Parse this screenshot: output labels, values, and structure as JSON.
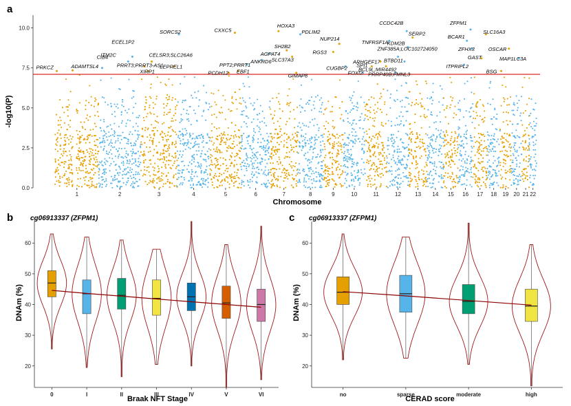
{
  "panels": {
    "a": "a",
    "b": "b",
    "c": "c"
  },
  "chart_data": [
    {
      "id": "a",
      "type": "scatter",
      "subtype": "manhattan",
      "xlabel": "Chromosome",
      "ylabel": "-log10(P)",
      "ylim": [
        0,
        10.8
      ],
      "yticks": [
        "0.0",
        "2.5",
        "5.0",
        "7.5",
        "10.0"
      ],
      "threshold": 7.1,
      "colors": {
        "odd": "#E69F00",
        "even": "#56B4E9",
        "threshold": "#d62728"
      },
      "chromosomes": [
        "1",
        "2",
        "3",
        "4",
        "5",
        "6",
        "7",
        "8",
        "9",
        "10",
        "11",
        "12",
        "13",
        "14",
        "15",
        "16",
        "17",
        "18",
        "19",
        "20",
        "21",
        "22"
      ],
      "hits": [
        {
          "gene": "PRKCZ",
          "chr": 1,
          "pos": 0.04,
          "p": 7.3
        },
        {
          "gene": "ADAMTSL4",
          "chr": 1,
          "pos": 0.4,
          "p": 7.35
        },
        {
          "gene": "CIB4",
          "chr": 2,
          "pos": 0.08,
          "p": 7.5
        },
        {
          "gene": "ITM2C",
          "chr": 2,
          "pos": 0.7,
          "p": 7.9
        },
        {
          "gene": "ECEL1P2",
          "chr": 2,
          "pos": 0.8,
          "p": 8.2
        },
        {
          "gene": "PRRT3;PRRT3-AS1",
          "chr": 3,
          "pos": 0.1,
          "p": 7.6
        },
        {
          "gene": "SORCS2",
          "chr": 4,
          "pos": 0.05,
          "p": 9.6
        },
        {
          "gene": "CELSR3;SLC26A6",
          "chr": 3,
          "pos": 0.3,
          "p": 7.9
        },
        {
          "gene": "XIRP1",
          "chr": 3,
          "pos": 0.2,
          "p": 7.3
        },
        {
          "gene": "LEPREL1",
          "chr": 3,
          "pos": 0.9,
          "p": 7.6
        },
        {
          "gene": "CXXC5",
          "chr": 5,
          "pos": 0.8,
          "p": 9.7
        },
        {
          "gene": "PCDH12",
          "chr": 5,
          "pos": 0.6,
          "p": 7.2
        },
        {
          "gene": "EBF1",
          "chr": 5,
          "pos": 0.9,
          "p": 7.3
        },
        {
          "gene": "PPT2;PRRT1",
          "chr": 6,
          "pos": 0.2,
          "p": 7.7
        },
        {
          "gene": "ANKRD6",
          "chr": 6,
          "pos": 0.7,
          "p": 8.0
        },
        {
          "gene": "HOXA3",
          "chr": 7,
          "pos": 0.3,
          "p": 9.8
        },
        {
          "gene": "SH2B2",
          "chr": 7,
          "pos": 0.6,
          "p": 8.6
        },
        {
          "gene": "AGPAT4",
          "chr": 6,
          "pos": 0.95,
          "p": 8.4
        },
        {
          "gene": "SLC37A3",
          "chr": 7,
          "pos": 0.8,
          "p": 8.2
        },
        {
          "gene": "GIMAP8",
          "chr": 7,
          "pos": 0.95,
          "p": 7.2
        },
        {
          "gene": "PDLIM2",
          "chr": 8,
          "pos": 0.1,
          "p": 9.6
        },
        {
          "gene": "NUP214",
          "chr": 9,
          "pos": 0.8,
          "p": 9.0
        },
        {
          "gene": "RGS3",
          "chr": 9,
          "pos": 0.5,
          "p": 8.5
        },
        {
          "gene": "CUGBP2",
          "chr": 10,
          "pos": 0.1,
          "p": 7.6
        },
        {
          "gene": "FOXI2",
          "chr": 10,
          "pos": 0.9,
          "p": 7.2
        },
        {
          "gene": "TNFRSF1A",
          "chr": 12,
          "pos": 0.1,
          "p": 9.2
        },
        {
          "gene": "SPI1",
          "chr": 11,
          "pos": 0.3,
          "p": 7.6
        },
        {
          "gene": "ARHGEF17",
          "chr": 11,
          "pos": 0.7,
          "p": 7.9
        },
        {
          "gene": "BCL9L;MIR4492",
          "chr": 11,
          "pos": 0.95,
          "p": 7.6
        },
        {
          "gene": "PRRP40B;FMNL3",
          "chr": 12,
          "pos": 0.4,
          "p": 7.2
        },
        {
          "gene": "CCDC42B",
          "chr": 12,
          "pos": 0.9,
          "p": 9.8
        },
        {
          "gene": "KDM2B",
          "chr": 12,
          "pos": 0.95,
          "p": 8.8
        },
        {
          "gene": "SERP2",
          "chr": 13,
          "pos": 0.2,
          "p": 9.4
        },
        {
          "gene": "ZNF385A;LOC102724050",
          "chr": 12,
          "pos": 0.5,
          "p": 8.2
        },
        {
          "gene": "BTBD11",
          "chr": 12,
          "pos": 0.8,
          "p": 7.9
        },
        {
          "gene": "ZFPM1",
          "chr": 16,
          "pos": 0.85,
          "p": 9.9
        },
        {
          "gene": "SLC16A3",
          "chr": 17,
          "pos": 0.9,
          "p": 9.6
        },
        {
          "gene": "BCAR1",
          "chr": 16,
          "pos": 0.6,
          "p": 9.2
        },
        {
          "gene": "ZFHX3",
          "chr": 16,
          "pos": 0.95,
          "p": 8.7
        },
        {
          "gene": "OSCAR",
          "chr": 19,
          "pos": 0.8,
          "p": 8.7
        },
        {
          "gene": "ITPRIPL2",
          "chr": 16,
          "pos": 0.4,
          "p": 7.7
        },
        {
          "gene": "GAST",
          "chr": 17,
          "pos": 0.6,
          "p": 8.1
        },
        {
          "gene": "BSG",
          "chr": 19,
          "pos": 0.1,
          "p": 7.3
        },
        {
          "gene": "MAP1LC3A",
          "chr": 20,
          "pos": 0.7,
          "p": 8.1
        }
      ]
    },
    {
      "id": "b",
      "type": "violin-box",
      "title": "cg06913337 (ZFPM1)",
      "xlabel": "Braak NFT Stage",
      "ylabel": "DNAm (%)",
      "ylim": [
        13,
        67
      ],
      "yticks": [
        "20",
        "30",
        "40",
        "50",
        "60"
      ],
      "categories": [
        "0",
        "I",
        "II",
        "III",
        "IV",
        "V",
        "VI"
      ],
      "colors": [
        "#E69F00",
        "#56B4E9",
        "#009E73",
        "#F0E442",
        "#0072B2",
        "#D55E00",
        "#CC79A7"
      ],
      "min": [
        25.5,
        19.5,
        16.5,
        20.5,
        20.0,
        13.0,
        15.5
      ],
      "q1": [
        42.5,
        37.0,
        38.5,
        36.5,
        38.0,
        35.5,
        34.5
      ],
      "median": [
        47.0,
        43.5,
        43.0,
        42.0,
        42.5,
        40.5,
        40.0
      ],
      "q3": [
        51.0,
        48.0,
        48.5,
        48.0,
        47.0,
        46.0,
        45.0
      ],
      "max": [
        63.0,
        62.0,
        61.0,
        58.0,
        67.0,
        59.5,
        65.5
      ],
      "trend": [
        44.6,
        43.6,
        42.7,
        41.8,
        40.9,
        40.0,
        39.1
      ]
    },
    {
      "id": "c",
      "type": "violin-box",
      "title": "cg06913337 (ZFPM1)",
      "xlabel": "CERAD score",
      "ylabel": "DNAm (%)",
      "ylim": [
        13,
        67
      ],
      "yticks": [
        "20",
        "30",
        "40",
        "50",
        "60"
      ],
      "categories": [
        "no",
        "sparse",
        "moderate",
        "high"
      ],
      "colors": [
        "#E69F00",
        "#56B4E9",
        "#009E73",
        "#F0E442"
      ],
      "min": [
        22.0,
        22.5,
        20.5,
        13.5
      ],
      "q1": [
        40.0,
        37.5,
        37.0,
        34.5
      ],
      "median": [
        44.0,
        43.5,
        41.0,
        39.5
      ],
      "q3": [
        49.0,
        49.5,
        46.5,
        45.0
      ],
      "max": [
        63.0,
        62.0,
        66.5,
        59.5
      ],
      "trend": [
        44.2,
        42.8,
        41.3,
        39.8
      ]
    }
  ]
}
